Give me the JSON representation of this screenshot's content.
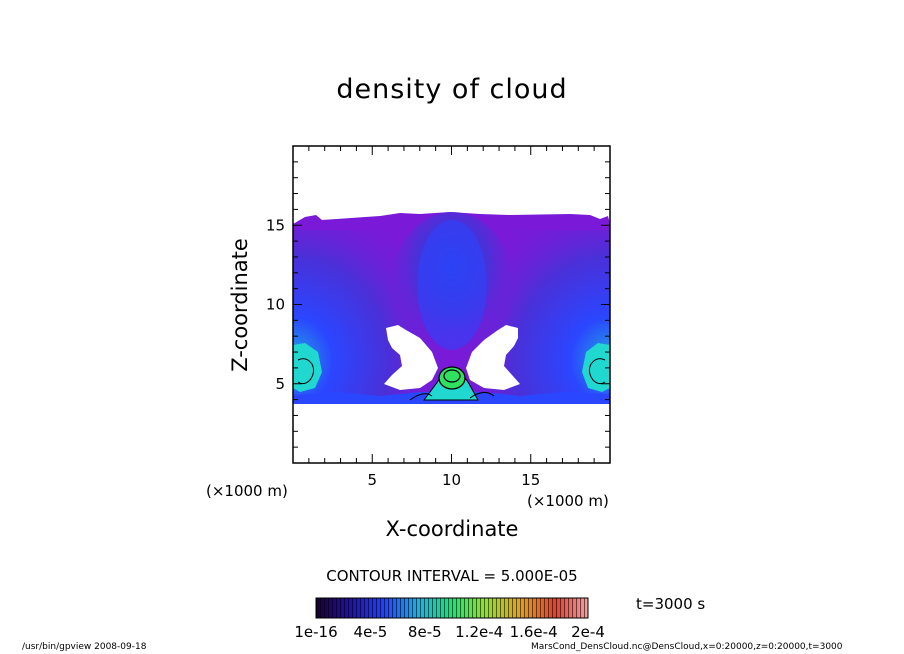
{
  "chart_data": {
    "type": "heatmap",
    "title": "density of cloud",
    "xlabel": "X-coordinate",
    "ylabel": "Z-coordinate",
    "x_unit": "(×1000 m)",
    "x_unit_right": "(×1000 m)",
    "xlim": [
      0,
      20
    ],
    "ylim": [
      0,
      20
    ],
    "x_ticks": [
      5,
      10,
      15
    ],
    "y_ticks": [
      5,
      10,
      15
    ],
    "contour_interval_label": "CONTOUR INTERVAL = 5.000E-05",
    "time_label": "t=3000 s",
    "colorbar": {
      "min": 1e-16,
      "max": 0.0002,
      "tick_labels": [
        "1e-16",
        "4e-5",
        "8e-5",
        "1.2e-4",
        "1.6e-4",
        "2e-4"
      ],
      "tick_values": [
        0,
        4e-05,
        8e-05,
        0.00012,
        0.00016,
        0.0002
      ]
    },
    "cloud_region_z": [
      3.8,
      15.2
    ]
  },
  "footer": {
    "left": "/usr/bin/gpview   2008-09-18",
    "right": "MarsCond_DensCloud.nc@DensCloud,x=0:20000,z=0:20000,t=3000"
  },
  "colors": {
    "purple": "#7a1ad8",
    "violet": "#6a20d0",
    "blue_dark": "#3a3ae0",
    "blue": "#2b46ff",
    "cyan": "#20d8d0",
    "green": "#30e060"
  }
}
